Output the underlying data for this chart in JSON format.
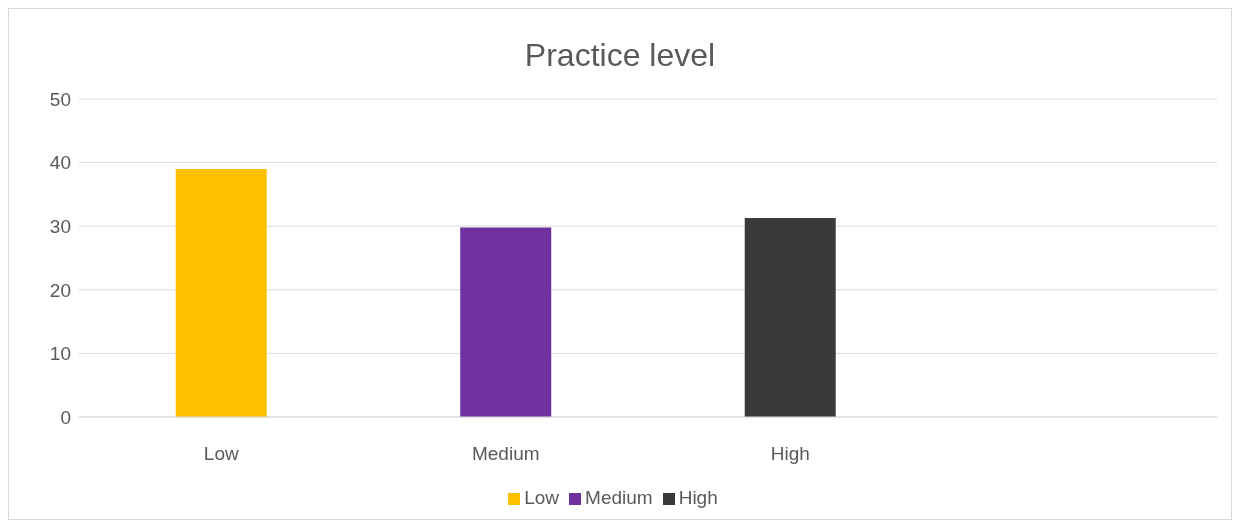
{
  "chart_data": {
    "type": "bar",
    "title": "Practice level",
    "categories": [
      "Low",
      "Medium",
      "High",
      null
    ],
    "series": [
      {
        "name": "Low",
        "color": "#ffc000",
        "values": [
          39,
          null,
          null,
          null
        ]
      },
      {
        "name": "Medium",
        "color": "#7030a0",
        "values": [
          null,
          29.8,
          null,
          null
        ]
      },
      {
        "name": "High",
        "color": "#3a3a3a",
        "values": [
          null,
          null,
          31.3,
          null
        ]
      }
    ],
    "ylim": [
      0,
      50
    ],
    "yticks": [
      0,
      10,
      20,
      30,
      40,
      50
    ],
    "grid": "y",
    "legend": "bottom"
  }
}
